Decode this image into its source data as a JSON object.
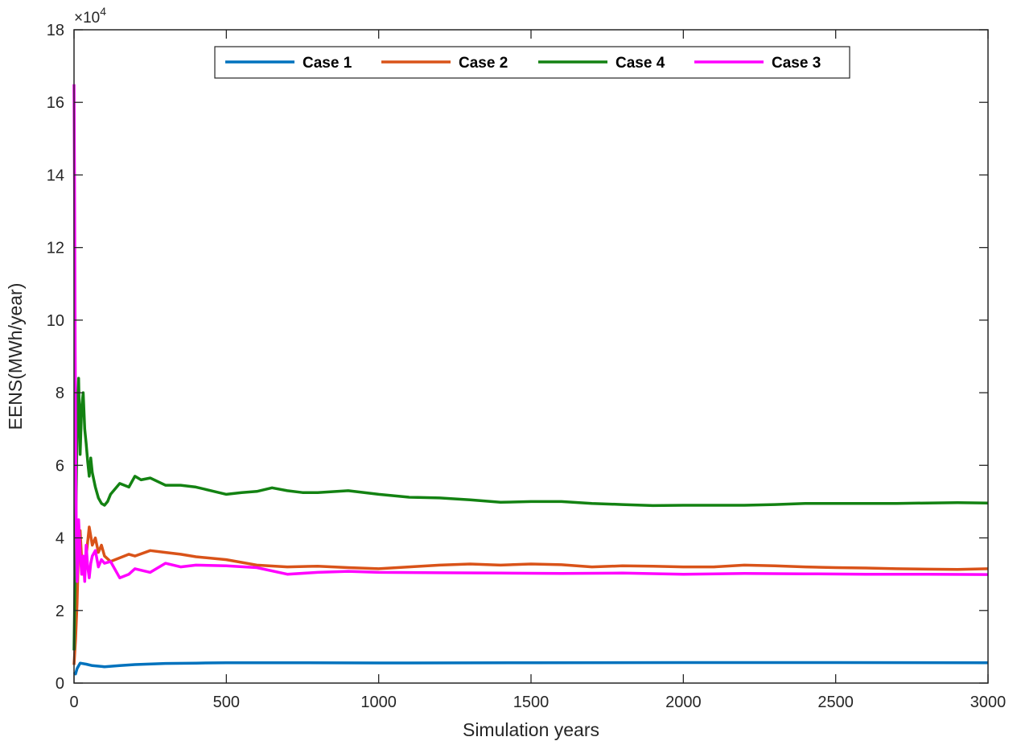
{
  "chart_data": {
    "type": "line",
    "xlabel": "Simulation years",
    "ylabel": "EENS(MWh/year)",
    "xlim": [
      0,
      3000
    ],
    "ylim": [
      0,
      180000
    ],
    "x_ticks": [
      0,
      500,
      1000,
      1500,
      2000,
      2500,
      3000
    ],
    "y_ticks": [
      0,
      2,
      4,
      6,
      8,
      10,
      12,
      14,
      16,
      18
    ],
    "y_multiplier": "×10",
    "y_exponent": "4",
    "grid": false,
    "legend_position": "top-center",
    "legend_order": [
      "Case 1",
      "Case 2",
      "Case 4",
      "Case 3"
    ],
    "series": [
      {
        "name": "Case 1",
        "color": "#0072BD",
        "x": [
          0,
          5,
          10,
          20,
          40,
          60,
          100,
          150,
          200,
          300,
          400,
          500,
          700,
          1000,
          1500,
          2000,
          2500,
          3000
        ],
        "y": [
          3000,
          2500,
          4000,
          5500,
          5200,
          4800,
          4500,
          4800,
          5100,
          5400,
          5500,
          5600,
          5600,
          5550,
          5600,
          5650,
          5650,
          5600
        ]
      },
      {
        "name": "Case 2",
        "color": "#D95319",
        "x": [
          0,
          5,
          10,
          15,
          20,
          25,
          30,
          40,
          50,
          60,
          70,
          80,
          90,
          100,
          120,
          150,
          180,
          200,
          250,
          300,
          350,
          400,
          500,
          600,
          700,
          800,
          900,
          1000,
          1100,
          1200,
          1300,
          1400,
          1500,
          1600,
          1700,
          1800,
          1900,
          2000,
          2100,
          2200,
          2300,
          2400,
          2500,
          2600,
          2700,
          2800,
          2900,
          3000
        ],
        "y": [
          5000,
          12000,
          22000,
          38000,
          42000,
          34000,
          30000,
          35000,
          43000,
          38000,
          40000,
          36000,
          38000,
          35000,
          33500,
          34500,
          35500,
          35000,
          36500,
          36000,
          35500,
          34800,
          34000,
          32500,
          32000,
          32200,
          31800,
          31500,
          32000,
          32500,
          32800,
          32500,
          32800,
          32600,
          32000,
          32300,
          32200,
          32000,
          32000,
          32500,
          32300,
          32000,
          31800,
          31700,
          31500,
          31400,
          31300,
          31500
        ]
      },
      {
        "name": "Case 4",
        "color": "#138212",
        "x": [
          0,
          5,
          10,
          15,
          20,
          25,
          30,
          35,
          40,
          45,
          50,
          55,
          60,
          70,
          80,
          90,
          100,
          110,
          120,
          150,
          180,
          200,
          220,
          250,
          300,
          350,
          400,
          450,
          500,
          550,
          600,
          650,
          700,
          750,
          800,
          900,
          1000,
          1100,
          1200,
          1300,
          1400,
          1500,
          1600,
          1700,
          1800,
          1900,
          2000,
          2100,
          2200,
          2300,
          2400,
          2500,
          2600,
          2700,
          2800,
          2900,
          3000
        ],
        "y": [
          9000,
          40000,
          70000,
          84000,
          63000,
          76000,
          80000,
          70000,
          66000,
          61000,
          57000,
          62000,
          58000,
          54000,
          51000,
          49500,
          49000,
          50000,
          52000,
          55000,
          54000,
          57000,
          56000,
          56500,
          54500,
          54500,
          54000,
          53000,
          52000,
          52500,
          52800,
          53800,
          53000,
          52500,
          52500,
          53000,
          52000,
          51200,
          51000,
          50500,
          49800,
          50000,
          50000,
          49500,
          49200,
          48900,
          49000,
          49000,
          49000,
          49200,
          49500,
          49500,
          49500,
          49500,
          49600,
          49700,
          49600
        ]
      },
      {
        "name": "Case 3",
        "color": "#FF00FF",
        "x": [
          0,
          2,
          4,
          6,
          8,
          10,
          12,
          15,
          18,
          20,
          25,
          30,
          35,
          40,
          45,
          50,
          55,
          60,
          70,
          80,
          90,
          100,
          120,
          150,
          180,
          200,
          250,
          300,
          350,
          400,
          500,
          600,
          700,
          800,
          900,
          1000,
          1200,
          1400,
          1600,
          1800,
          2000,
          2200,
          2400,
          2600,
          2800,
          3000
        ],
        "y": [
          165000,
          130000,
          90000,
          55000,
          38000,
          28000,
          32000,
          45000,
          40000,
          36000,
          30000,
          35000,
          28000,
          38000,
          32000,
          29000,
          33000,
          35000,
          36500,
          32000,
          34000,
          33000,
          33500,
          29000,
          30000,
          31500,
          30500,
          33000,
          32000,
          32500,
          32300,
          31800,
          30000,
          30500,
          30800,
          30500,
          30400,
          30300,
          30200,
          30300,
          30000,
          30200,
          30100,
          30000,
          30000,
          29900
        ]
      }
    ]
  }
}
